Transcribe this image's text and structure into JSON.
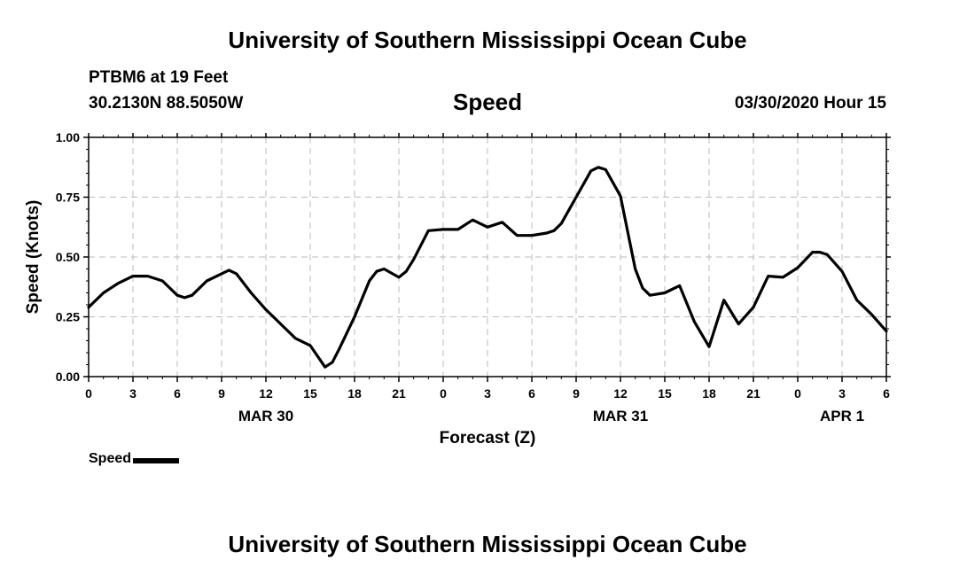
{
  "header": {
    "title": "University of Southern Mississippi Ocean Cube",
    "station": "PTBM6 at 19 Feet",
    "coordinates": "30.2130N 88.5050W",
    "date": "03/30/2020 Hour 15"
  },
  "footer": {
    "title": "University of Southern Mississippi Ocean Cube"
  },
  "colors": {
    "line": "#000000",
    "grid": "#bbbbbb",
    "background": "#ffffff"
  },
  "chart_data": {
    "type": "line",
    "title": "Speed",
    "xlabel": "Forecast (Z)",
    "ylabel": "Speed (Knots)",
    "ylim": [
      0,
      1
    ],
    "y_ticks": [
      "0.00",
      "0.25",
      "0.50",
      "0.75",
      "1.00"
    ],
    "x_tick_labels": [
      "0",
      "3",
      "6",
      "9",
      "12",
      "15",
      "18",
      "21",
      "0",
      "3",
      "6",
      "9",
      "12",
      "15",
      "18",
      "21",
      "0",
      "3",
      "6"
    ],
    "date_labels": [
      {
        "label": "MAR 30",
        "hour": 12
      },
      {
        "label": "MAR 31",
        "hour": 36
      },
      {
        "label": "APR 1",
        "hour": 51
      }
    ],
    "grid": true,
    "legend_position": "bottom-left",
    "series": [
      {
        "name": "Speed",
        "x": [
          0,
          1,
          2,
          3,
          4,
          5,
          6,
          6.5,
          7,
          8,
          9,
          9.5,
          10,
          11,
          12,
          13,
          14,
          15,
          16,
          16.5,
          17,
          18,
          19,
          19.5,
          20,
          21,
          21.5,
          22,
          23,
          24,
          25,
          26,
          27,
          28,
          29,
          30,
          31,
          31.5,
          32,
          33,
          34,
          34.5,
          35,
          36,
          37,
          37.5,
          38,
          39,
          40,
          41,
          42,
          43,
          44,
          45,
          46,
          47,
          48,
          49,
          49.5,
          50,
          51,
          52,
          53,
          54
        ],
        "values": [
          0.29,
          0.35,
          0.39,
          0.42,
          0.42,
          0.4,
          0.34,
          0.33,
          0.34,
          0.4,
          0.43,
          0.445,
          0.43,
          0.35,
          0.28,
          0.22,
          0.16,
          0.13,
          0.04,
          0.06,
          0.12,
          0.25,
          0.4,
          0.44,
          0.45,
          0.415,
          0.44,
          0.49,
          0.61,
          0.615,
          0.615,
          0.655,
          0.625,
          0.645,
          0.59,
          0.59,
          0.6,
          0.61,
          0.64,
          0.75,
          0.86,
          0.875,
          0.865,
          0.755,
          0.45,
          0.37,
          0.34,
          0.35,
          0.38,
          0.23,
          0.125,
          0.32,
          0.22,
          0.29,
          0.42,
          0.415,
          0.455,
          0.52,
          0.52,
          0.51,
          0.44,
          0.32,
          0.26,
          0.19
        ]
      }
    ]
  }
}
